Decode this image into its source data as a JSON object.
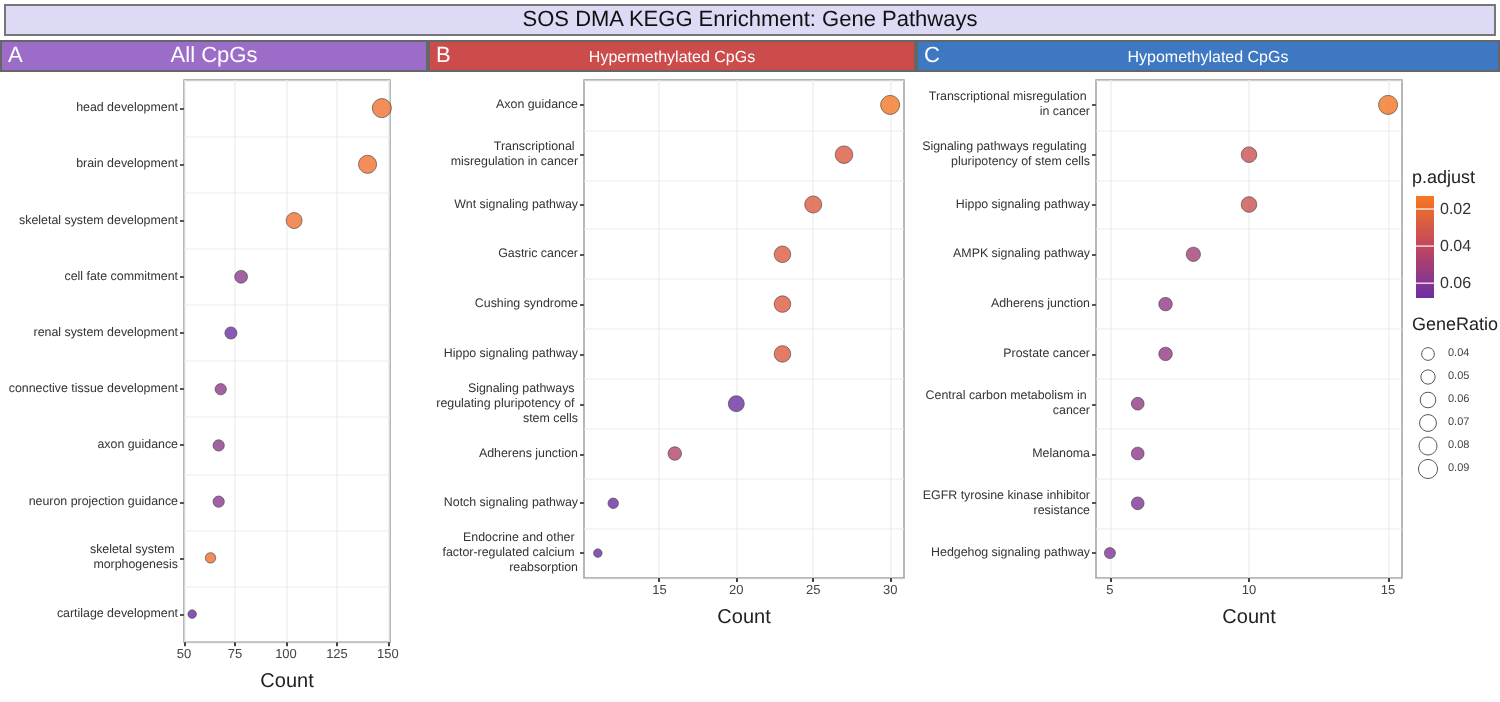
{
  "chart_data": [
    {
      "type": "other",
      "title": "SOS DMA KEGG Enrichment: Gene Pathways"
    },
    {
      "type": "bubble",
      "subtitle": "All CpGs",
      "annotations": [
        "A"
      ],
      "orientation": "horizontal",
      "xlabel": "Count",
      "xlim": [
        50,
        151
      ],
      "xticks": [
        50,
        75,
        100,
        125,
        150
      ],
      "grid": true,
      "marker": "circle",
      "categories": [
        "head development",
        "brain development",
        "skeletal system development",
        "cell fate commitment",
        "renal system development",
        "connective tissue development",
        "axon guidance",
        "neuron projection guidance",
        "skeletal system morphogenesis",
        "cartilage development"
      ],
      "values": [
        147,
        140,
        104,
        78,
        73,
        68,
        67,
        67,
        63,
        54
      ],
      "sizes": [
        1,
        0.9,
        0.7,
        0.45,
        0.4,
        0.35,
        0.35,
        0.35,
        0.3,
        0.2
      ],
      "colors": [
        "#f07030",
        "#f07030",
        "#ef6f32",
        "#8c3a8c",
        "#6b2fa2",
        "#8e3a88",
        "#8a3a8c",
        "#8a3a8c",
        "#ef7032",
        "#6a2aa0"
      ]
    },
    {
      "type": "bubble",
      "subtitle": "Hypermethylated CpGs",
      "annotations": [
        "B"
      ],
      "orientation": "horizontal",
      "xlabel": "Count",
      "xlim": [
        10.1,
        30.9
      ],
      "xticks": [
        15,
        20,
        25,
        30
      ],
      "grid": true,
      "marker": "circle",
      "categories": [
        "Axon guidance",
        "Transcriptional misregulation in cancer",
        "Wnt signaling pathway",
        "Gastric cancer",
        "Cushing syndrome",
        "Hippo signaling pathway",
        "Signaling pathways regulating pluripotency of stem cells",
        "Adherens junction",
        "Notch signaling pathway",
        "Endocrine and other factor-regulated calcium reabsorption"
      ],
      "values": [
        30,
        27,
        25,
        23,
        23,
        23,
        20,
        16,
        12,
        11
      ],
      "sizes": [
        1,
        0.85,
        0.8,
        0.75,
        0.75,
        0.75,
        0.7,
        0.5,
        0.3,
        0.2
      ],
      "colors": [
        "#f27526",
        "#d9583f",
        "#dc5a3e",
        "#dc5a3e",
        "#dc5a3e",
        "#dc5a3e",
        "#6a2fa2",
        "#b0446a",
        "#6a2da0",
        "#6a2da0"
      ]
    },
    {
      "type": "bubble",
      "subtitle": "Hypomethylated CpGs",
      "annotations": [
        "C"
      ],
      "orientation": "horizontal",
      "xlabel": "Count",
      "xlim": [
        4.5,
        15.5
      ],
      "xticks": [
        5,
        10,
        15
      ],
      "grid": true,
      "marker": "circle",
      "categories": [
        "Transcriptional misregulation in cancer",
        "Signaling pathways regulating pluripotency of stem cells",
        "Hippo signaling pathway",
        "AMPK signaling pathway",
        "Adherens junction",
        "Prostate cancer",
        "Central carbon metabolism in cancer",
        "Melanoma",
        "EGFR tyrosine kinase inhibitor resistance",
        "Hedgehog signaling pathway"
      ],
      "values": [
        15,
        10,
        10,
        8,
        7,
        7,
        6,
        6,
        6,
        5
      ],
      "sizes": [
        0.09,
        0.06,
        0.06,
        0.05,
        0.045,
        0.045,
        0.04,
        0.04,
        0.04,
        0.03
      ],
      "cvalues": [
        0.015,
        0.035,
        0.035,
        0.05,
        0.055,
        0.055,
        0.055,
        0.057,
        0.062,
        0.062
      ],
      "clabel": "p.adjust",
      "clim": [
        0.013,
        0.068
      ],
      "cticks": [
        0.02,
        0.04,
        0.06
      ],
      "legend_title": "GeneRatio",
      "size_legend": [
        0.04,
        0.05,
        0.06,
        0.07,
        0.08,
        0.09
      ]
    }
  ]
}
